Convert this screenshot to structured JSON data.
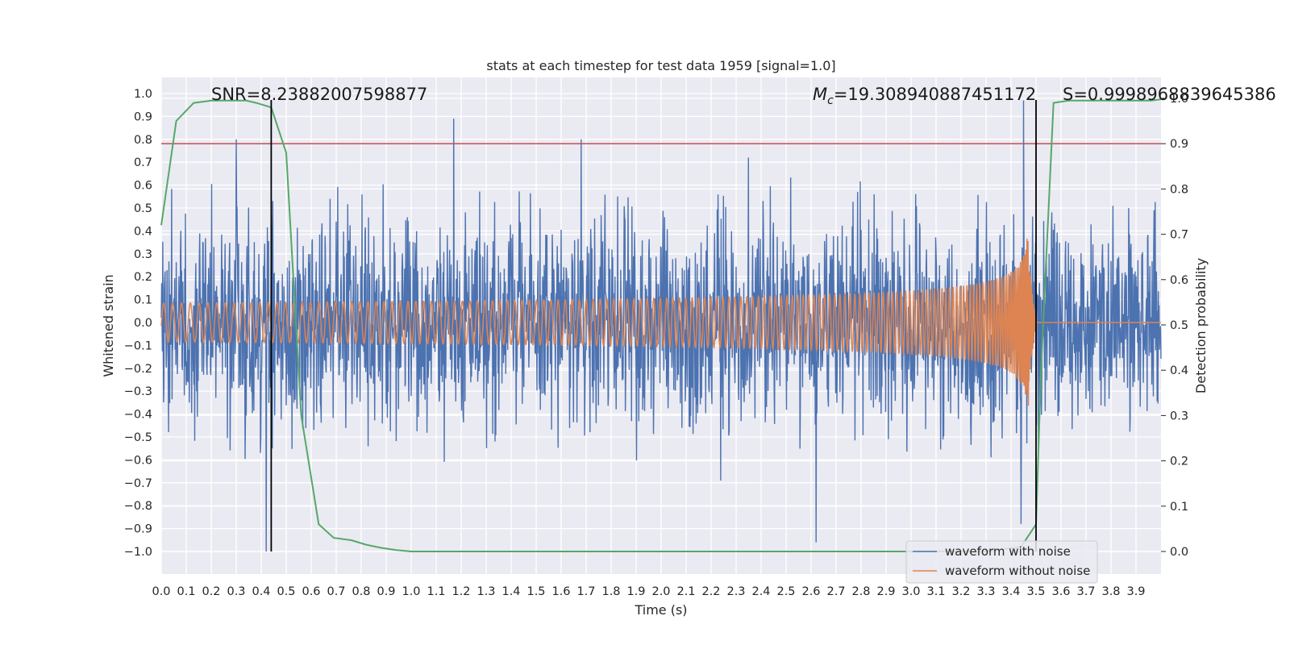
{
  "chart_data": {
    "type": "line",
    "title": "stats at each timestep for test data 1959 [signal=1.0]",
    "xlabel": "Time (s)",
    "ylabel": "Whitened strain",
    "y2label": "Detection probability",
    "xlim": [
      0.0,
      4.0
    ],
    "ylim": [
      -1.1,
      1.05
    ],
    "y2lim": [
      -0.05,
      1.0
    ],
    "xticks": [
      "0.0",
      "0.1",
      "0.2",
      "0.3",
      "0.4",
      "0.5",
      "0.6",
      "0.7",
      "0.8",
      "0.9",
      "1.0",
      "1.1",
      "1.2",
      "1.3",
      "1.4",
      "1.5",
      "1.6",
      "1.7",
      "1.8",
      "1.9",
      "2.0",
      "2.1",
      "2.2",
      "2.3",
      "2.4",
      "2.5",
      "2.6",
      "2.7",
      "2.8",
      "2.9",
      "3.0",
      "3.1",
      "3.2",
      "3.3",
      "3.4",
      "3.5",
      "3.6",
      "3.7",
      "3.8",
      "3.9"
    ],
    "yticks": [
      "1.0",
      "0.9",
      "0.8",
      "0.7",
      "0.6",
      "0.5",
      "0.4",
      "0.3",
      "0.2",
      "0.1",
      "0.0",
      "−0.1",
      "−0.2",
      "−0.3",
      "−0.4",
      "−0.5",
      "−0.6",
      "−0.7",
      "−0.8",
      "−0.9",
      "−1.0"
    ],
    "y2ticks": [
      "1.0",
      "0.9",
      "0.8",
      "0.7",
      "0.6",
      "0.5",
      "0.4",
      "0.3",
      "0.2",
      "0.1",
      "0.0"
    ],
    "annotations": {
      "snr": "SNR=8.23882007598877",
      "mc_symbol": "M",
      "mc_sub": "c",
      "mc_value": "=19.308940887451172",
      "s": "S=0.9998968839645386"
    },
    "vlines_x": [
      0.44,
      3.5
    ],
    "threshold_y2": 0.9,
    "legend": {
      "position": "lower right",
      "entries": [
        "waveform with noise",
        "waveform without noise"
      ]
    },
    "series": [
      {
        "name": "waveform with noise",
        "color": "#4c72b0",
        "description": "dense noisy strain, amplitude roughly ±0.5 with spikes to ±1.0",
        "spikes": [
          [
            0.42,
            -1.0
          ],
          [
            0.44,
            0.47
          ],
          [
            1.17,
            0.89
          ],
          [
            1.68,
            0.8
          ],
          [
            0.3,
            0.8
          ],
          [
            2.62,
            -0.96
          ],
          [
            3.45,
            0.97
          ],
          [
            3.44,
            -0.88
          ]
        ]
      },
      {
        "name": "waveform without noise",
        "color": "#dd8452",
        "description": "clean inspiral chirp growing to merger near t=3.47 s",
        "merger_t": 3.47,
        "peak_amplitude": 0.46
      },
      {
        "name": "detection probability",
        "axis": "right",
        "color": "#55a868",
        "t": [
          0.0,
          0.06,
          0.13,
          0.2,
          0.27,
          0.34,
          0.38,
          0.44,
          0.5,
          0.56,
          0.63,
          0.69,
          0.76,
          0.82,
          0.88,
          0.94,
          1.0,
          1.25,
          1.5,
          2.0,
          2.5,
          3.0,
          3.3,
          3.44,
          3.5,
          3.52,
          3.57,
          3.63,
          3.69,
          3.75,
          3.8,
          3.88,
          3.96,
          4.0
        ],
        "values": [
          0.72,
          0.95,
          0.99,
          0.995,
          0.995,
          0.995,
          0.99,
          0.98,
          0.88,
          0.3,
          0.06,
          0.03,
          0.025,
          0.015,
          0.008,
          0.003,
          0.0,
          0.0,
          0.0,
          0.0,
          0.0,
          0.0,
          0.0,
          0.01,
          0.06,
          0.4,
          0.99,
          0.995,
          0.995,
          0.995,
          0.995,
          0.995,
          0.995,
          0.998
        ]
      }
    ]
  }
}
